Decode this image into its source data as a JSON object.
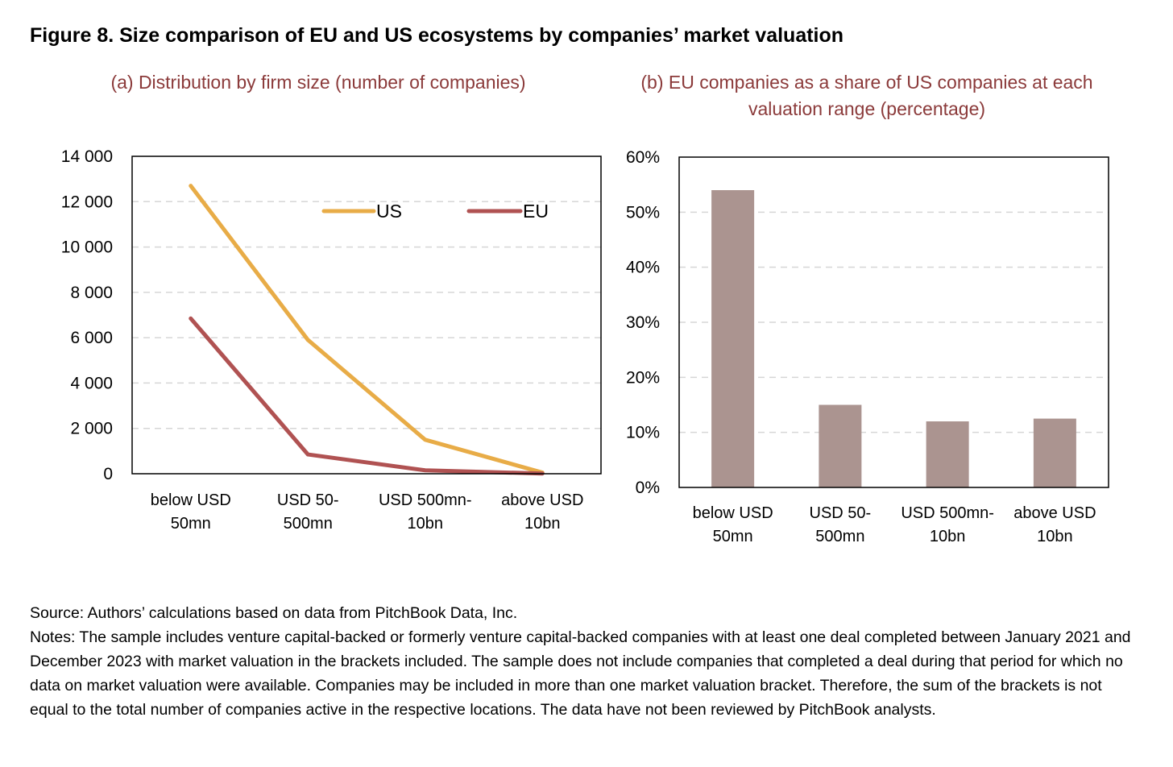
{
  "figure": {
    "title": "Figure 8. Size comparison of EU and US ecosystems by companies’ market valuation"
  },
  "chart_data": [
    {
      "type": "line",
      "title": "(a) Distribution by firm size (number of companies)",
      "categories": [
        "below USD 50mn",
        "USD 50-500mn",
        "USD 500mn-10bn",
        "above USD 10bn"
      ],
      "category_lines": [
        [
          "below USD",
          "50mn"
        ],
        [
          "USD 50-",
          "500mn"
        ],
        [
          "USD 500mn-",
          "10bn"
        ],
        [
          "above USD",
          "10bn"
        ]
      ],
      "series": [
        {
          "name": "US",
          "values": [
            12700,
            5900,
            1500,
            50
          ],
          "color": "#e8ac47"
        },
        {
          "name": "EU",
          "values": [
            6850,
            850,
            150,
            10
          ],
          "color": "#b05252"
        }
      ],
      "ylim": [
        0,
        14000
      ],
      "yticks": [
        0,
        2000,
        4000,
        6000,
        8000,
        10000,
        12000,
        14000
      ],
      "ytick_labels": [
        "0",
        "2 000",
        "4 000",
        "6 000",
        "8 000",
        "10 000",
        "12 000",
        "14 000"
      ],
      "grid": true,
      "legend_position": "top-right"
    },
    {
      "type": "bar",
      "title": "(b) EU companies as a share of US companies at each valuation range (percentage)",
      "title_lines": [
        "(b) EU companies as a share of US companies at each",
        "valuation range (percentage)"
      ],
      "categories": [
        "below USD 50mn",
        "USD 50-500mn",
        "USD 500mn-10bn",
        "above USD 10bn"
      ],
      "category_lines": [
        [
          "below USD",
          "50mn"
        ],
        [
          "USD 50-",
          "500mn"
        ],
        [
          "USD 500mn-",
          "10bn"
        ],
        [
          "above USD",
          "10bn"
        ]
      ],
      "values": [
        54,
        15,
        12,
        12.5
      ],
      "bar_color": "#ab9490",
      "ylim": [
        0,
        60
      ],
      "yticks": [
        0,
        10,
        20,
        30,
        40,
        50,
        60
      ],
      "ytick_labels": [
        "0%",
        "10%",
        "20%",
        "30%",
        "40%",
        "50%",
        "60%"
      ],
      "grid": true
    }
  ],
  "notes": {
    "source": "Source: Authors’ calculations based on data from PitchBook Data, Inc.",
    "text": "Notes: The sample includes venture capital-backed or formerly venture capital-backed companies with at least one deal completed between January 2021 and December 2023 with market valuation in the brackets included. The sample does not include companies that completed a deal during that period for which no data on market valuation were available. Companies may be included in more than one market valuation bracket. Therefore, the sum of the brackets is not equal to the total number of companies active in the respective locations. The data have not been reviewed by PitchBook analysts."
  }
}
